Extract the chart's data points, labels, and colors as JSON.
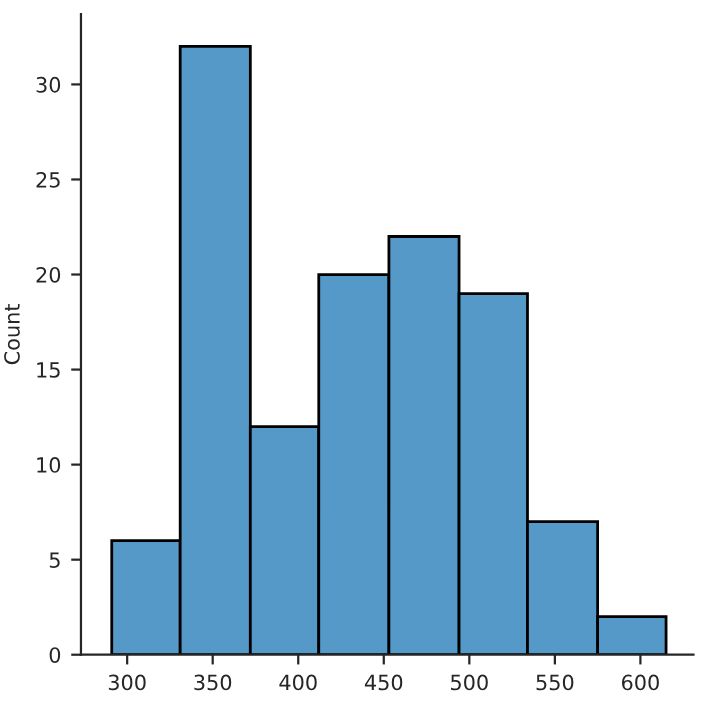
{
  "chart_data": {
    "type": "histogram",
    "ylabel": "Count",
    "bins": [
      291,
      331,
      372,
      412,
      453,
      494,
      534,
      575,
      615
    ],
    "values": [
      6,
      32,
      12,
      20,
      22,
      19,
      7,
      2
    ],
    "color": "#5499c7",
    "xlim": [
      273,
      631
    ],
    "xticks": [
      300,
      350,
      400,
      450,
      500,
      550,
      600
    ],
    "ylim": [
      0,
      33.7
    ],
    "yticks": [
      0,
      5,
      10,
      15,
      20,
      25,
      30
    ],
    "grid": false
  }
}
